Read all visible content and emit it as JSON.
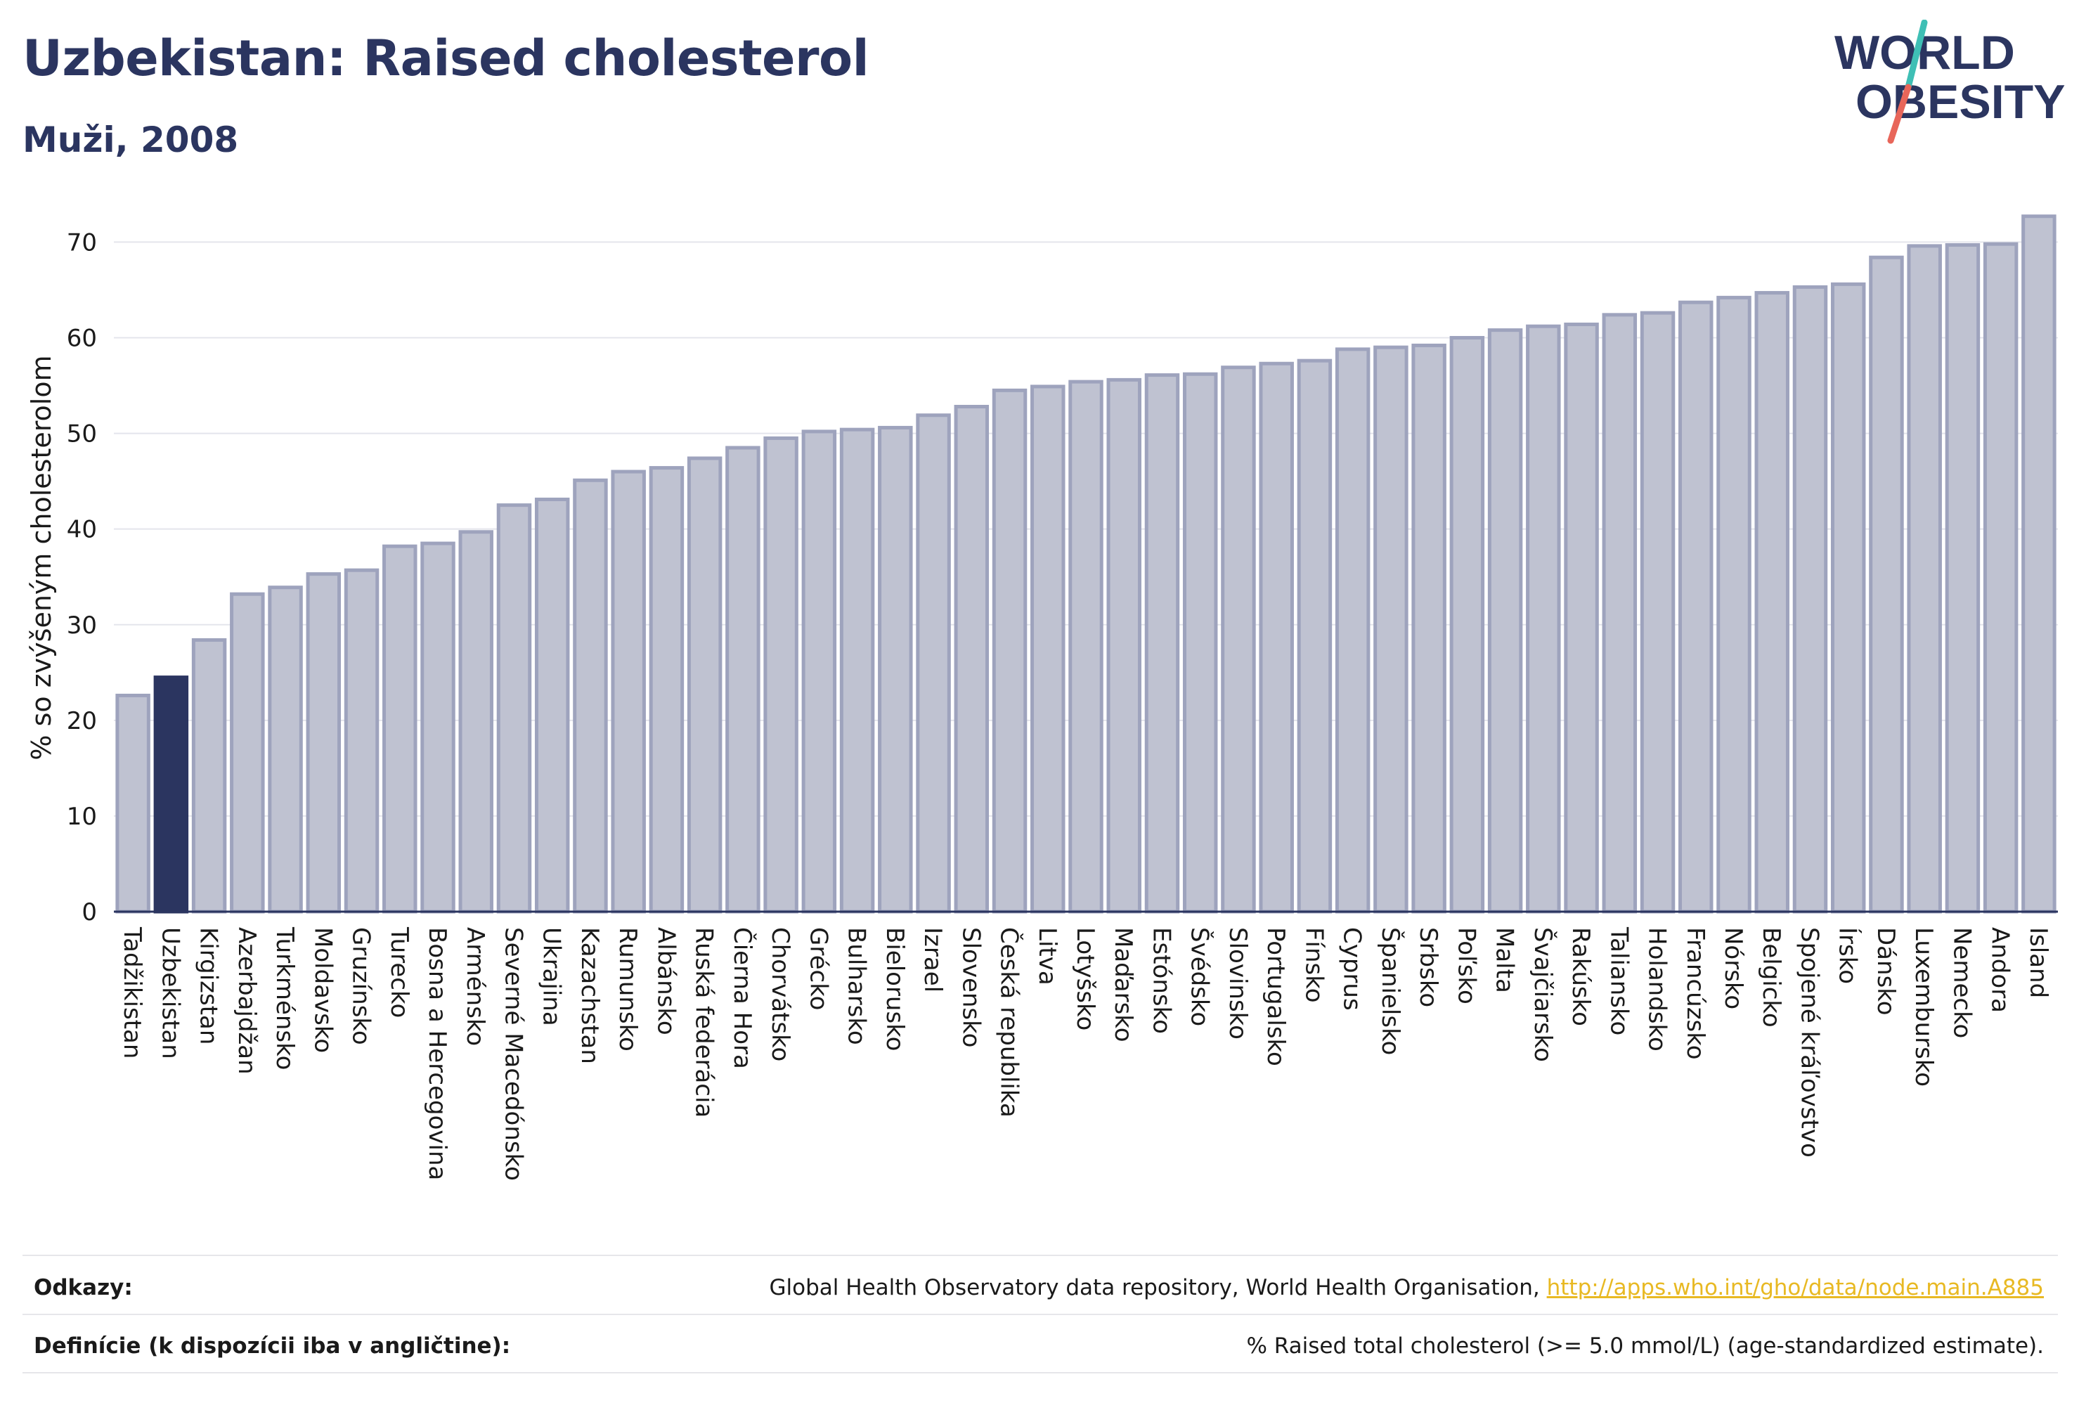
{
  "header": {
    "title": "Uzbekistan: Raised cholesterol",
    "subtitle": "Muži, 2008"
  },
  "logo": {
    "line1": "WORLD",
    "line2": "OBESITY",
    "colors": {
      "text": "#2b3560",
      "slash_teal": "#3fbfb5",
      "slash_red": "#e8665a"
    }
  },
  "chart_data": {
    "type": "bar",
    "ylabel": "% so zvýšeným cholesterolom",
    "ylim": [
      0,
      74
    ],
    "yticks": [
      0,
      10,
      20,
      30,
      40,
      50,
      60,
      70
    ],
    "grid": true,
    "highlight": "Uzbekistan",
    "colors": {
      "bar": "#bfc2d1",
      "bar_edge": "#9ea3bd",
      "highlight": "#2b3560"
    },
    "categories": [
      "Tadžikistan",
      "Uzbekistan",
      "Kirgizstan",
      "Azerbajdžan",
      "Turkménsko",
      "Moldavsko",
      "Gruzínsko",
      "Turecko",
      "Bosna a Hercegovina",
      "Arménsko",
      "Severné Macedónsko",
      "Ukrajina",
      "Kazachstan",
      "Rumunsko",
      "Albánsko",
      "Ruská federácia",
      "Čierna Hora",
      "Chorvátsko",
      "Grécko",
      "Bulharsko",
      "Bielorusko",
      "Izrael",
      "Slovensko",
      "Česká republika",
      "Litva",
      "Lotyšsko",
      "Maďarsko",
      "Estónsko",
      "Švédsko",
      "Slovinsko",
      "Portugalsko",
      "Fínsko",
      "Cyprus",
      "Španielsko",
      "Srbsko",
      "Poľsko",
      "Malta",
      "Švajčiarsko",
      "Rakúsko",
      "Taliansko",
      "Holandsko",
      "Francúzsko",
      "Nórsko",
      "Belgicko",
      "Spojené kráľovstvo",
      "Írsko",
      "Dánsko",
      "Luxembursko",
      "Nemecko",
      "Andora",
      "Island"
    ],
    "values": [
      22.6,
      24.5,
      28.4,
      33.2,
      33.9,
      35.3,
      35.7,
      38.2,
      38.5,
      39.7,
      42.5,
      43.1,
      45.1,
      46.0,
      46.4,
      47.4,
      48.5,
      49.5,
      50.2,
      50.4,
      50.6,
      51.9,
      52.8,
      54.5,
      54.9,
      55.4,
      55.6,
      56.1,
      56.2,
      56.9,
      57.3,
      57.6,
      58.8,
      59.0,
      59.2,
      60.0,
      60.8,
      61.2,
      61.4,
      62.4,
      62.6,
      63.7,
      64.2,
      64.7,
      65.3,
      65.6,
      68.4,
      69.6,
      69.7,
      69.8,
      72.7
    ]
  },
  "footer": {
    "references_label": "Odkazy:",
    "references_text": "Global Health Observatory data repository, World Health Organisation, ",
    "references_link": "http://apps.who.int/gho/data/node.main.A885",
    "definitions_label": "Definície (k dispozícii iba v angličtine):",
    "definitions_text": "% Raised total cholesterol (>= 5.0 mmol/L) (age-standardized estimate)."
  }
}
